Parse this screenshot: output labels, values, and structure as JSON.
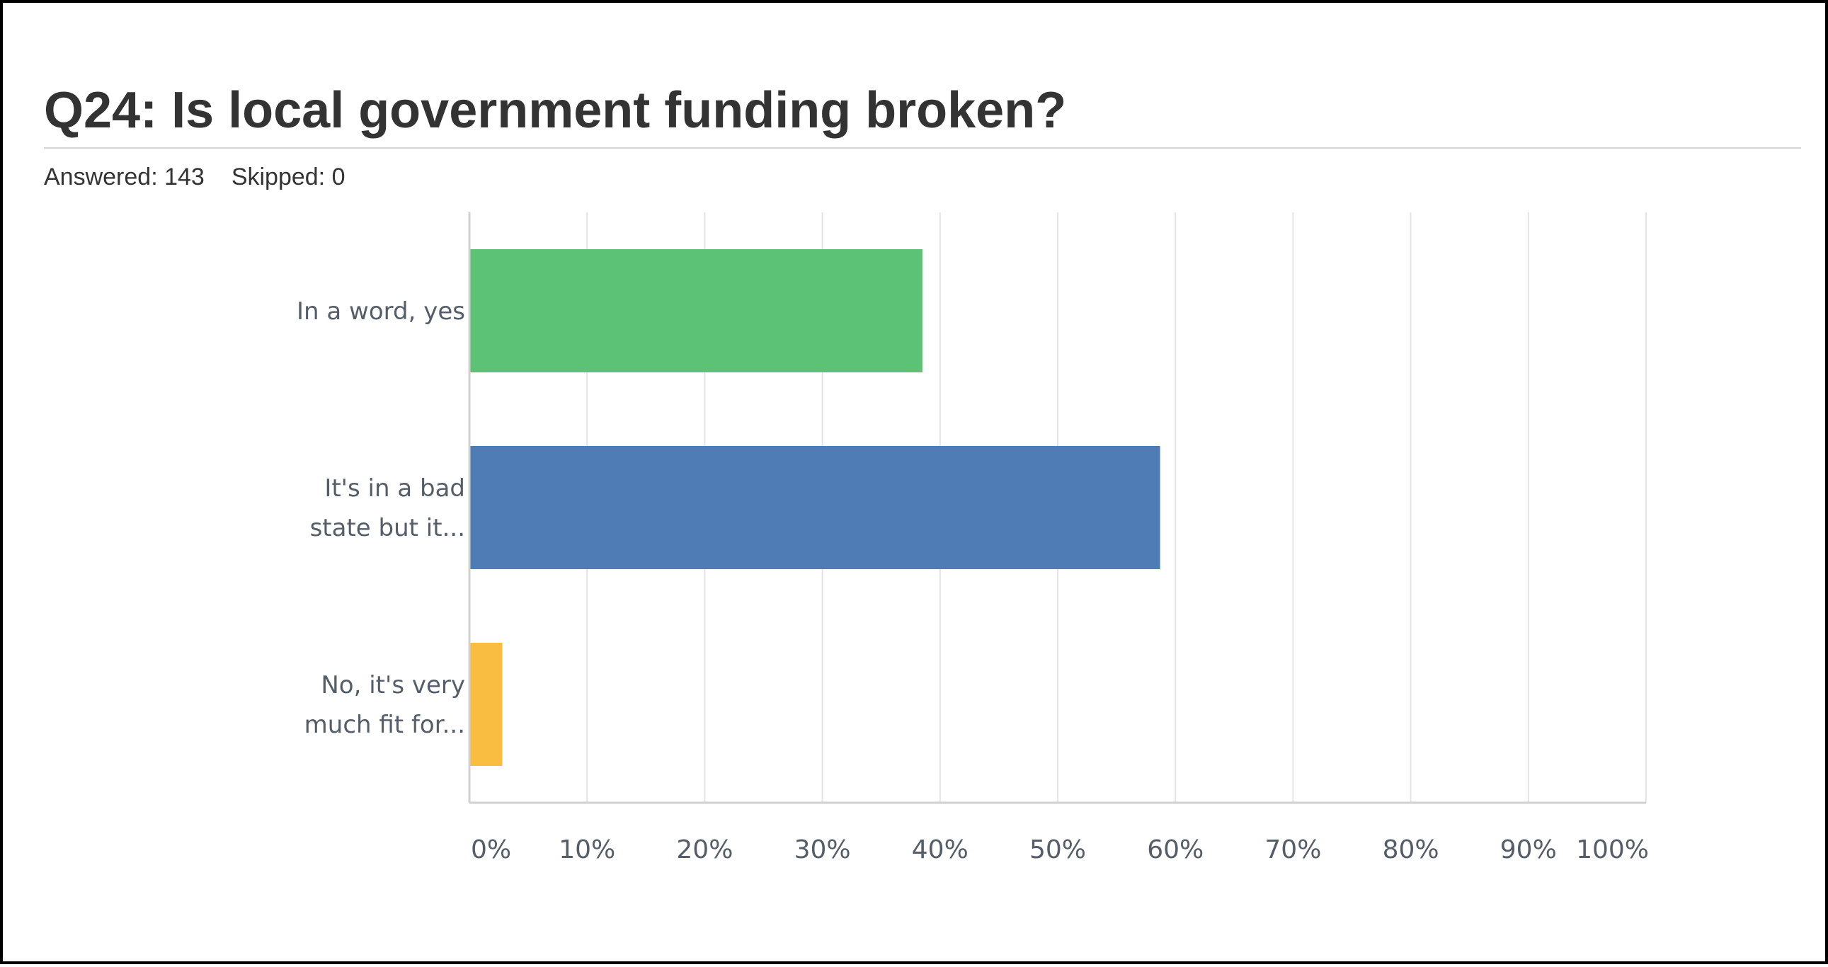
{
  "question": {
    "title": "Q24: Is local government funding broken?",
    "answered_label": "Answered: 143",
    "skipped_label": "Skipped: 0"
  },
  "chart_data": {
    "type": "bar",
    "orientation": "horizontal",
    "categories": [
      [
        "In a word, yes"
      ],
      [
        "It's in a bad",
        "state but it..."
      ],
      [
        "No, it's very",
        "much fit for..."
      ]
    ],
    "values": [
      38.5,
      58.7,
      2.8
    ],
    "value_unit": "%",
    "colors": [
      "#5bc276",
      "#507cb6",
      "#f9be41"
    ],
    "xlim": [
      0,
      100
    ],
    "ticks": [
      0,
      10,
      20,
      30,
      40,
      50,
      60,
      70,
      80,
      90,
      100
    ],
    "tick_labels": [
      "0%",
      "10%",
      "20%",
      "30%",
      "40%",
      "50%",
      "60%",
      "70%",
      "80%",
      "90%",
      "100%"
    ],
    "grid": true,
    "gridline_color": "#e5e5e5",
    "axis_color": "#d0d0d0",
    "label_color": "#555e68"
  }
}
